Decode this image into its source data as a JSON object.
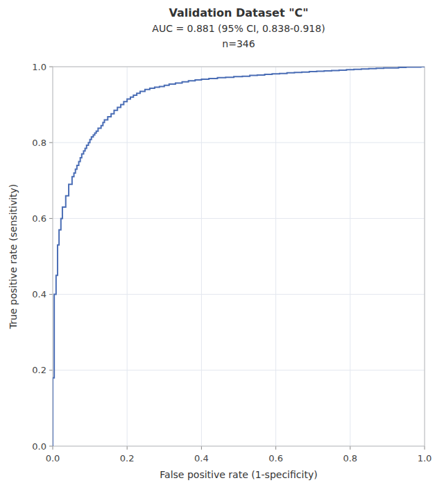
{
  "chart_data": {
    "type": "step",
    "title": [
      "Validation Dataset \"C\"",
      "AUC = 0.881 (95% CI, 0.838-0.918)",
      "n=346"
    ],
    "x_label": "False positive rate (1-specificity)",
    "y_label": "True positive rate (sensitivity)",
    "color": "#4a6db5",
    "grid": true,
    "xlim": [
      0.0,
      1.0
    ],
    "ylim": [
      0.0,
      1.0
    ],
    "xticks": [
      {
        "value": 0.0,
        "label": "0.0"
      },
      0.2,
      0.4,
      0.6,
      0.8,
      {
        "value": 1.0,
        "label": "1.0"
      }
    ],
    "yticks": [
      {
        "value": 0.0,
        "label": "0.0"
      },
      0.2,
      0.4,
      0.6,
      0.8,
      {
        "value": 1.0,
        "label": "1.0"
      }
    ],
    "x": [
      0.0,
      0.0,
      0.004,
      0.004,
      0.009,
      0.009,
      0.013,
      0.013,
      0.017,
      0.017,
      0.022,
      0.022,
      0.026,
      0.026,
      0.03,
      0.035,
      0.035,
      0.039,
      0.043,
      0.043,
      0.048,
      0.052,
      0.057,
      0.061,
      0.065,
      0.07,
      0.074,
      0.078,
      0.083,
      0.087,
      0.091,
      0.096,
      0.1,
      0.104,
      0.109,
      0.113,
      0.117,
      0.122,
      0.13,
      0.135,
      0.139,
      0.148,
      0.157,
      0.165,
      0.174,
      0.183,
      0.191,
      0.2,
      0.209,
      0.217,
      0.226,
      0.235,
      0.248,
      0.261,
      0.274,
      0.287,
      0.3,
      0.313,
      0.33,
      0.348,
      0.365,
      0.383,
      0.4,
      0.42,
      0.443,
      0.465,
      0.487,
      0.51,
      0.53,
      0.55,
      0.57,
      0.59,
      0.61,
      0.63,
      0.65,
      0.67,
      0.69,
      0.71,
      0.73,
      0.75,
      0.77,
      0.79,
      0.81,
      0.83,
      0.85,
      0.87,
      0.89,
      0.91,
      0.93,
      0.95,
      0.97,
      0.99,
      1.0
    ],
    "values": [
      0.0,
      0.18,
      0.18,
      0.4,
      0.4,
      0.45,
      0.45,
      0.53,
      0.53,
      0.57,
      0.57,
      0.6,
      0.6,
      0.63,
      0.63,
      0.63,
      0.66,
      0.66,
      0.66,
      0.69,
      0.69,
      0.71,
      0.72,
      0.73,
      0.74,
      0.75,
      0.76,
      0.77,
      0.778,
      0.785,
      0.793,
      0.8,
      0.808,
      0.815,
      0.82,
      0.825,
      0.83,
      0.838,
      0.845,
      0.853,
      0.86,
      0.868,
      0.876,
      0.885,
      0.893,
      0.9,
      0.908,
      0.915,
      0.92,
      0.925,
      0.93,
      0.935,
      0.94,
      0.943,
      0.946,
      0.948,
      0.951,
      0.954,
      0.957,
      0.96,
      0.963,
      0.965,
      0.967,
      0.969,
      0.971,
      0.972,
      0.974,
      0.975,
      0.977,
      0.978,
      0.98,
      0.981,
      0.982,
      0.984,
      0.985,
      0.986,
      0.987,
      0.988,
      0.989,
      0.99,
      0.991,
      0.992,
      0.993,
      0.994,
      0.995,
      0.996,
      0.997,
      0.997,
      0.998,
      0.999,
      0.999,
      1.0,
      1.0
    ]
  }
}
